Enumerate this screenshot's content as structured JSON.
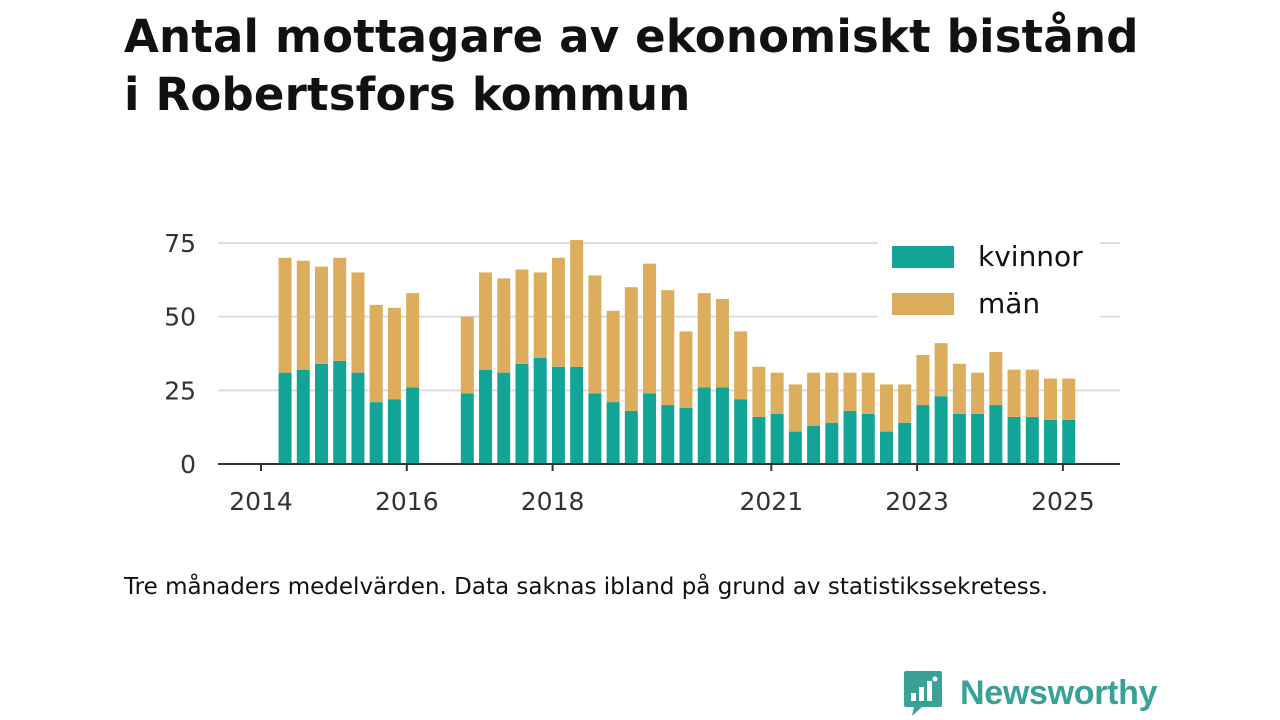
{
  "title_lines": [
    "Antal mottagare av ekonomiskt bistånd",
    "i Robertsfors kommun"
  ],
  "footnote": "Tre månaders medelvärden. Data saknas ibland på grund av statistikssekretess.",
  "brand": {
    "name": "Newsworthy",
    "icon": "newsworthy-logo-icon",
    "color": "#3aa199"
  },
  "chart_data": {
    "type": "bar",
    "stacked": true,
    "title": "",
    "xlabel": "",
    "ylabel": "",
    "ylim": [
      0,
      75
    ],
    "yticks": [
      0,
      25,
      50,
      75
    ],
    "xticks": [
      2014,
      2016,
      2018,
      2021,
      2023,
      2025
    ],
    "xlim": [
      2014.0,
      2026.3
    ],
    "grid": true,
    "legend_position": "top-right",
    "x": [
      2014.33,
      2014.58,
      2014.83,
      2015.08,
      2015.33,
      2015.58,
      2015.83,
      2016.08,
      2016.83,
      2017.08,
      2017.33,
      2017.58,
      2017.83,
      2018.08,
      2018.33,
      2018.58,
      2018.83,
      2019.08,
      2019.33,
      2019.58,
      2019.83,
      2020.08,
      2020.33,
      2020.58,
      2020.83,
      2021.08,
      2021.33,
      2021.58,
      2021.83,
      2022.08,
      2022.33,
      2022.58,
      2022.83,
      2023.08,
      2023.33,
      2023.58,
      2023.83,
      2024.08,
      2024.33,
      2024.58,
      2024.83,
      2025.08
    ],
    "series": [
      {
        "name": "kvinnor",
        "color": "#12a597",
        "values": [
          31,
          32,
          34,
          35,
          31,
          21,
          22,
          26,
          24,
          32,
          31,
          34,
          36,
          33,
          33,
          24,
          21,
          18,
          24,
          20,
          19,
          26,
          26,
          22,
          16,
          17,
          11,
          13,
          14,
          18,
          17,
          11,
          14,
          20,
          23,
          17,
          17,
          20,
          16,
          16,
          15,
          15
        ]
      },
      {
        "name": "män",
        "color": "#dcad5d",
        "values": [
          39,
          37,
          33,
          35,
          34,
          33,
          31,
          32,
          26,
          33,
          32,
          32,
          29,
          37,
          43,
          40,
          31,
          42,
          44,
          39,
          26,
          32,
          30,
          23,
          17,
          14,
          16,
          18,
          17,
          13,
          14,
          16,
          13,
          17,
          18,
          17,
          14,
          18,
          16,
          16,
          14,
          14
        ]
      }
    ]
  }
}
